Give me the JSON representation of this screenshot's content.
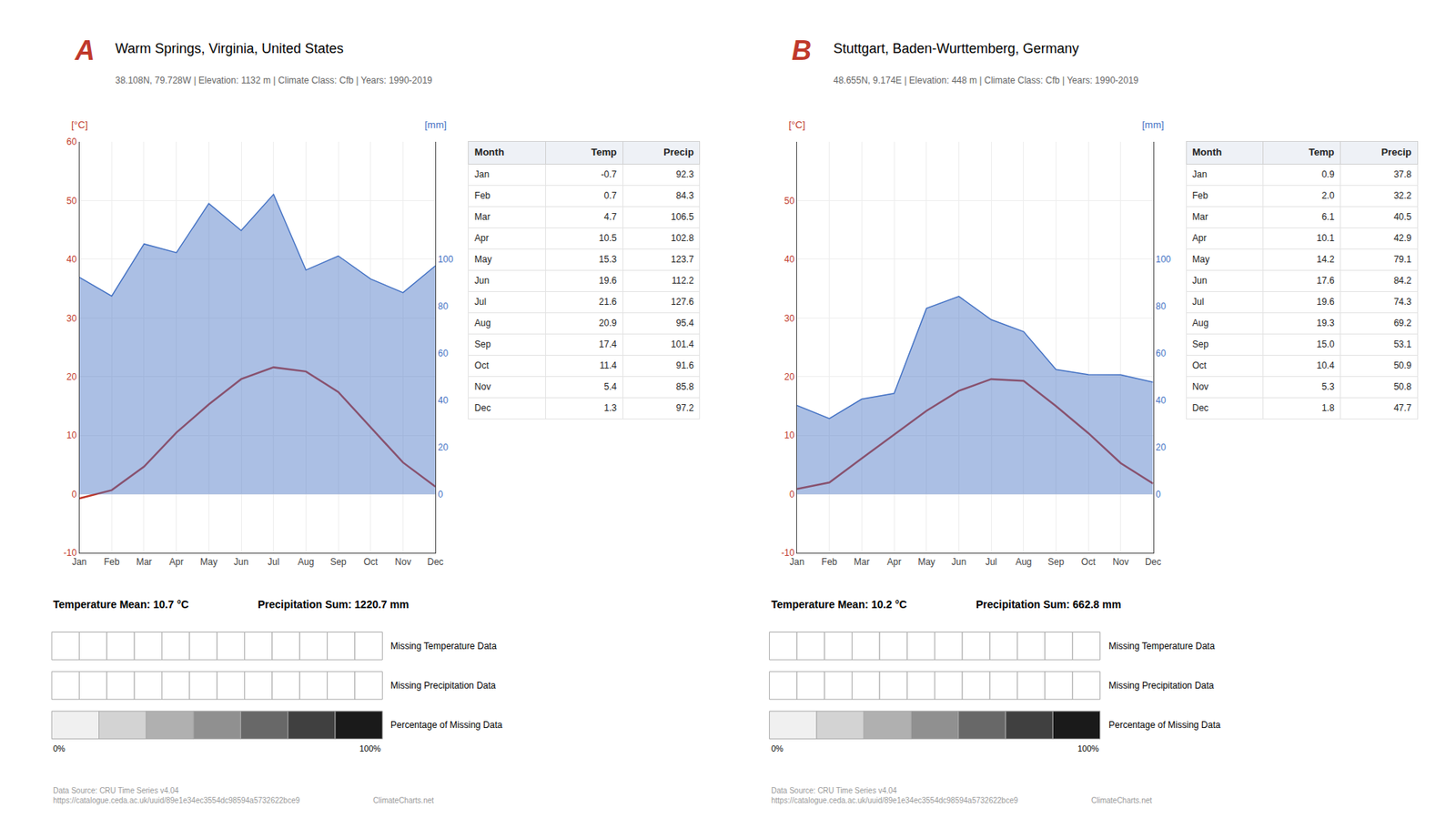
{
  "chart_data": [
    {
      "type": "line",
      "label": "A",
      "title": "Warm Springs, Virginia, United States",
      "subtitle": "38.108N, 79.728W | Elevation: 1132 m | Climate Class: Cfb | Years: 1990-2019",
      "categories": [
        "Jan",
        "Feb",
        "Mar",
        "Apr",
        "May",
        "Jun",
        "Jul",
        "Aug",
        "Sep",
        "Oct",
        "Nov",
        "Dec"
      ],
      "series": [
        {
          "type": "area",
          "color": "#4472c4",
          "axis": "y2",
          "values": [
            92.3,
            84.3,
            106.5,
            102.8,
            123.7,
            112.2,
            127.6,
            95.4,
            101.4,
            91.6,
            85.8,
            97.2
          ]
        },
        {
          "type": "line",
          "color": "#c0392b",
          "values": [
            -0.7,
            0.7,
            4.7,
            10.5,
            15.3,
            19.6,
            21.6,
            20.9,
            17.4,
            11.4,
            5.4,
            1.3
          ]
        }
      ],
      "ylim": [
        -10,
        60
      ],
      "yticks": [
        -10,
        0,
        10,
        20,
        30,
        40,
        50,
        60
      ],
      "y2lim": [
        -25,
        150
      ],
      "y2ticks": [
        0,
        20,
        40,
        60,
        80,
        100
      ],
      "ylabel": "[°C]",
      "y2label": "[mm]",
      "grid": true,
      "annotations": [
        "Temperature Mean: 10.7 °C",
        "Precipitation Sum: 1220.7 mm"
      ],
      "table_columns": [
        "Month",
        "Temp",
        "Precip"
      ],
      "missing_data": {
        "labels": [
          "Missing Temperature Data",
          "Missing Precipitation Data"
        ],
        "scale_label": "Percentage of Missing Data",
        "scale_colors": [
          "#f0f0f0",
          "#d3d3d3",
          "#b0b0b0",
          "#909090",
          "#686868",
          "#404040",
          "#1a1a1a"
        ],
        "scale_ticks": [
          {
            "value": 0,
            "label": "0%"
          },
          {
            "value": 100,
            "label": "100%"
          }
        ]
      },
      "footer": [
        "Data Source: CRU Time Series v4.04\nhttps://catalogue.ceda.ac.uk/uuid/89e1e34ec3554dc98594a5732622bce9",
        "ClimateCharts.net"
      ]
    },
    {
      "type": "line",
      "label": "B",
      "title": "Stuttgart, Baden-Wurttemberg, Germany",
      "subtitle": "48.655N, 9.174E | Elevation: 448 m | Climate Class: Cfb | Years: 1990-2019",
      "categories": [
        "Jan",
        "Feb",
        "Mar",
        "Apr",
        "May",
        "Jun",
        "Jul",
        "Aug",
        "Sep",
        "Oct",
        "Nov",
        "Dec"
      ],
      "series": [
        {
          "type": "area",
          "color": "#4472c4",
          "axis": "y2",
          "values": [
            37.8,
            32.2,
            40.5,
            42.9,
            79.1,
            84.2,
            74.3,
            69.2,
            53.1,
            50.9,
            50.8,
            47.7
          ]
        },
        {
          "type": "line",
          "color": "#c0392b",
          "values": [
            0.9,
            2.0,
            6.1,
            10.1,
            14.2,
            17.6,
            19.6,
            19.3,
            15.0,
            10.4,
            5.3,
            1.8
          ]
        }
      ],
      "ylim": [
        -10,
        60
      ],
      "yticks": [
        -10,
        0,
        10,
        20,
        30,
        40,
        50
      ],
      "y2lim": [
        -25,
        150
      ],
      "y2ticks": [
        0,
        20,
        40,
        60,
        80,
        100
      ],
      "ylabel": "[°C]",
      "y2label": "[mm]",
      "grid": true,
      "annotations": [
        "Temperature Mean: 10.2 °C",
        "Precipitation Sum: 662.8 mm"
      ],
      "table_columns": [
        "Month",
        "Temp",
        "Precip"
      ],
      "missing_data": {
        "labels": [
          "Missing Temperature Data",
          "Missing Precipitation Data"
        ],
        "scale_label": "Percentage of Missing Data",
        "scale_colors": [
          "#f0f0f0",
          "#d3d3d3",
          "#b0b0b0",
          "#909090",
          "#686868",
          "#404040",
          "#1a1a1a"
        ],
        "scale_ticks": [
          {
            "value": 0,
            "label": "0%"
          },
          {
            "value": 100,
            "label": "100%"
          }
        ]
      },
      "footer": [
        "Data Source: CRU Time Series v4.04\nhttps://catalogue.ceda.ac.uk/uuid/89e1e34ec3554dc98594a5732622bce9",
        "ClimateCharts.net"
      ]
    }
  ]
}
